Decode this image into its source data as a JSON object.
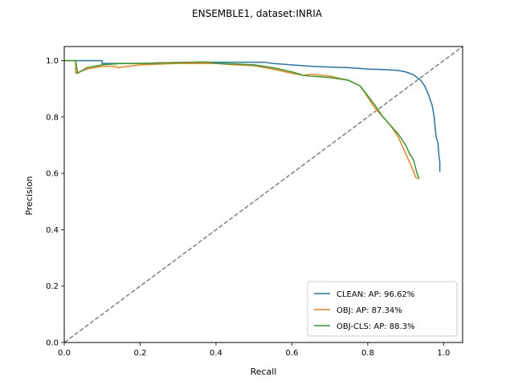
{
  "chart_data": {
    "type": "line",
    "title": "ENSEMBLE1, dataset:INRIA",
    "xlabel": "Recall",
    "ylabel": "Precision",
    "xlim": [
      0.0,
      1.05
    ],
    "ylim": [
      0.0,
      1.05
    ],
    "xticks": [
      "0.0",
      "0.2",
      "0.4",
      "0.6",
      "0.8",
      "1.0"
    ],
    "yticks": [
      "0.0",
      "0.2",
      "0.4",
      "0.6",
      "0.8",
      "1.0"
    ],
    "grid": false,
    "legend_position": "lower-right",
    "reference_line": {
      "style": "dashed",
      "color": "#808080",
      "x": [
        0,
        1.05
      ],
      "y": [
        0,
        1.05
      ]
    },
    "series": [
      {
        "name": "CLEAN: AP: 96.62%",
        "color": "#1f77b4",
        "x": [
          0.0,
          0.1,
          0.1,
          0.15,
          0.2,
          0.25,
          0.3,
          0.35,
          0.4,
          0.45,
          0.5,
          0.53,
          0.55,
          0.6,
          0.65,
          0.7,
          0.75,
          0.8,
          0.85,
          0.88,
          0.9,
          0.92,
          0.94,
          0.95,
          0.96,
          0.97,
          0.975,
          0.98,
          0.985,
          0.987,
          0.99,
          0.99
        ],
        "y": [
          1.0,
          1.0,
          0.99,
          0.99,
          0.99,
          0.992,
          0.993,
          0.994,
          0.994,
          0.994,
          0.994,
          0.994,
          0.99,
          0.985,
          0.98,
          0.977,
          0.975,
          0.97,
          0.968,
          0.965,
          0.96,
          0.95,
          0.93,
          0.91,
          0.88,
          0.84,
          0.8,
          0.73,
          0.71,
          0.67,
          0.64,
          0.605
        ]
      },
      {
        "name": "OBJ: AP: 87.34%",
        "color": "#ff7f0e",
        "x": [
          0.0,
          0.03,
          0.03,
          0.06,
          0.1,
          0.135,
          0.14,
          0.2,
          0.3,
          0.4,
          0.45,
          0.5,
          0.55,
          0.6,
          0.63,
          0.65,
          0.7,
          0.75,
          0.78,
          0.8,
          0.82,
          0.84,
          0.86,
          0.88,
          0.89,
          0.9,
          0.91,
          0.92,
          0.925,
          0.93
        ],
        "y": [
          1.0,
          1.0,
          0.955,
          0.97,
          0.98,
          0.98,
          0.975,
          0.985,
          0.99,
          0.99,
          0.985,
          0.982,
          0.97,
          0.955,
          0.948,
          0.952,
          0.945,
          0.93,
          0.91,
          0.87,
          0.83,
          0.8,
          0.77,
          0.73,
          0.7,
          0.67,
          0.64,
          0.61,
          0.59,
          0.58
        ]
      },
      {
        "name": "OBJ-CLS: AP: 88.3%",
        "color": "#2ca02c",
        "x": [
          0.0,
          0.03,
          0.035,
          0.06,
          0.1,
          0.15,
          0.2,
          0.3,
          0.38,
          0.4,
          0.45,
          0.5,
          0.55,
          0.6,
          0.63,
          0.65,
          0.7,
          0.75,
          0.78,
          0.8,
          0.82,
          0.84,
          0.86,
          0.88,
          0.9,
          0.91,
          0.92,
          0.93,
          0.935
        ],
        "y": [
          1.0,
          1.0,
          0.955,
          0.975,
          0.985,
          0.99,
          0.99,
          0.993,
          0.995,
          0.99,
          0.988,
          0.985,
          0.975,
          0.96,
          0.948,
          0.945,
          0.94,
          0.93,
          0.91,
          0.875,
          0.84,
          0.8,
          0.77,
          0.74,
          0.7,
          0.67,
          0.65,
          0.6,
          0.58
        ]
      }
    ]
  }
}
